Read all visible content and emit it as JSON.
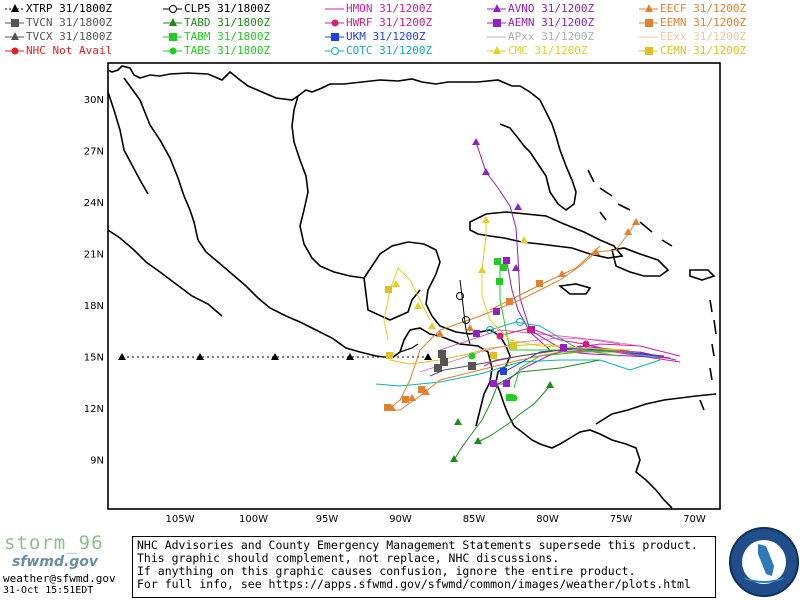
{
  "legend": [
    {
      "label": "XTRP 31/1800Z",
      "color": "#000000",
      "marker": "triangle",
      "line": "dotted",
      "col": 0,
      "row": 0
    },
    {
      "label": "TVCN 31/1800Z",
      "color": "#555555",
      "marker": "square",
      "line": "solid",
      "col": 0,
      "row": 1
    },
    {
      "label": "TVCX 31/1800Z",
      "color": "#555555",
      "marker": "triangle",
      "line": "solid",
      "col": 0,
      "row": 2
    },
    {
      "label": "NHC Not Avail",
      "color": "#e02020",
      "marker": "circle",
      "line": "solid",
      "col": 0,
      "row": 3
    },
    {
      "label": "CLP5 31/1800Z",
      "color": "#000000",
      "marker": "circle-open",
      "line": "solid",
      "col": 1,
      "row": 0
    },
    {
      "label": "TABD 31/1800Z",
      "color": "#1e8a1e",
      "marker": "triangle",
      "line": "solid",
      "col": 1,
      "row": 1
    },
    {
      "label": "TABM 31/1800Z",
      "color": "#22cc22",
      "marker": "square",
      "line": "solid",
      "col": 1,
      "row": 2
    },
    {
      "label": "TABS 31/1800Z",
      "color": "#22cc22",
      "marker": "circle",
      "line": "solid",
      "col": 1,
      "row": 3
    },
    {
      "label": "HMON 31/1200Z",
      "color": "#d020a0",
      "marker": "none",
      "line": "solid",
      "col": 2,
      "row": 0
    },
    {
      "label": "HWRF 31/1200Z",
      "color": "#d02080",
      "marker": "circle",
      "line": "solid",
      "col": 2,
      "row": 1
    },
    {
      "label": "UKM 31/1200Z",
      "color": "#2040e0",
      "marker": "square",
      "line": "solid",
      "col": 2,
      "row": 2
    },
    {
      "label": "COTC 31/1200Z",
      "color": "#10b0b0",
      "marker": "circle-open",
      "line": "solid",
      "col": 2,
      "row": 3
    },
    {
      "label": "AVNO 31/1200Z",
      "color": "#9020c0",
      "marker": "triangle",
      "line": "solid",
      "col": 3,
      "row": 0
    },
    {
      "label": "AEMN 31/1200Z",
      "color": "#9020c0",
      "marker": "square",
      "line": "solid",
      "col": 3,
      "row": 1
    },
    {
      "label": "APxx 31/1200Z",
      "color": "#b0b0b0",
      "marker": "none",
      "line": "solid",
      "col": 3,
      "row": 2
    },
    {
      "label": "CMC 31/1200Z",
      "color": "#e0d020",
      "marker": "triangle",
      "line": "solid",
      "col": 3,
      "row": 3
    },
    {
      "label": "EECF 31/1200Z",
      "color": "#e08030",
      "marker": "triangle",
      "line": "solid",
      "col": 4,
      "row": 0
    },
    {
      "label": "EEMN 31/1200Z",
      "color": "#e08030",
      "marker": "square",
      "line": "solid",
      "col": 4,
      "row": 1
    },
    {
      "label": "EExx 31/1200Z",
      "color": "#f0c8a0",
      "marker": "none",
      "line": "solid",
      "col": 4,
      "row": 2
    },
    {
      "label": "CEMN 31/1200Z",
      "color": "#e0c020",
      "marker": "square",
      "line": "solid",
      "col": 4,
      "row": 3
    }
  ],
  "map": {
    "lat_labels": [
      "30N",
      "27N",
      "24N",
      "21N",
      "18N",
      "15N",
      "12N",
      "9N"
    ],
    "lon_labels": [
      "105W",
      "100W",
      "95W",
      "90W",
      "85W",
      "80W",
      "75W",
      "70W"
    ]
  },
  "footer": {
    "storm_name": "storm_96",
    "logo_text": "sfwmd.gov",
    "email": "weather@sfwmd.gov",
    "timestamp": "31-Oct 15:51EDT",
    "seal_text": "SOUTH FLORIDA WATER MANAGEMENT DISTRICT"
  },
  "disclaimer": [
    "NHC Advisories and County Emergency Management Statements supersede this product.",
    "This graphic should complement, not replace, NHC discussions.",
    "If anything on this graphic causes confusion, ignore the entire product.",
    "For full info, see  https://apps.sfwmd.gov/sfwmd/common/images/weather/plots.html"
  ]
}
